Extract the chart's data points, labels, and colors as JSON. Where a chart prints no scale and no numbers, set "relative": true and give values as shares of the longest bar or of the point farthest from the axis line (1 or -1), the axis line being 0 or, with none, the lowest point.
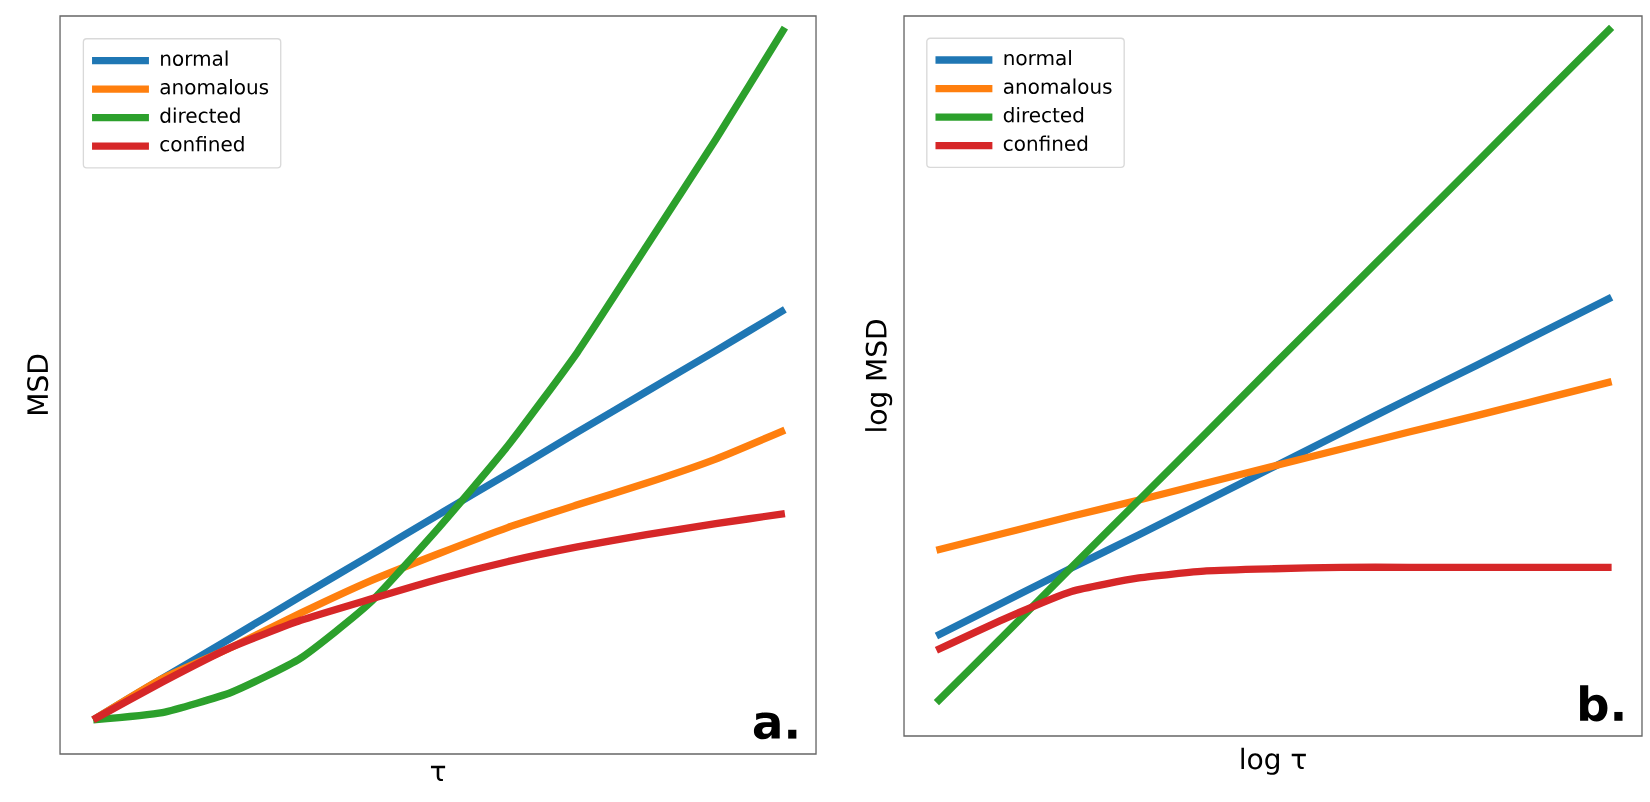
{
  "chart_data": [
    {
      "type": "line",
      "relative": true,
      "xlabel": "τ",
      "ylabel": "MSD",
      "legend": "top left",
      "annotations": [
        "a."
      ],
      "categories": [
        null,
        null,
        null,
        null,
        null,
        null,
        null,
        null,
        null,
        null,
        null
      ],
      "series": [
        {
          "name": "normal",
          "color": "#1f77b4",
          "values": [
            0.047,
            0.104,
            0.16,
            0.217,
            0.273,
            0.33,
            0.386,
            0.443,
            0.499,
            0.555,
            0.612
          ]
        },
        {
          "name": "anomalous",
          "color": "#ff7f0e",
          "values": [
            0.047,
            0.104,
            0.147,
            0.194,
            0.238,
            0.276,
            0.312,
            0.343,
            0.373,
            0.406,
            0.446
          ]
        },
        {
          "name": "directed",
          "color": "#2ca02c",
          "values": [
            0.047,
            0.057,
            0.085,
            0.132,
            0.208,
            0.312,
            0.425,
            0.553,
            0.699,
            0.846,
            1
          ]
        },
        {
          "name": "confined",
          "color": "#d62728",
          "values": [
            0.047,
            0.099,
            0.147,
            0.184,
            0.213,
            0.241,
            0.265,
            0.285,
            0.302,
            0.317,
            0.331
          ]
        }
      ]
    },
    {
      "type": "line",
      "relative": true,
      "xlabel": "log τ",
      "ylabel": "log MSD",
      "legend": "top left",
      "annotations": [
        "b."
      ],
      "categories": [
        null,
        null,
        null,
        null,
        null,
        null,
        null,
        null,
        null,
        null,
        null
      ],
      "series": [
        {
          "name": "normal",
          "color": "#1f77b4",
          "values": [
            0.141,
            0.189,
            0.237,
            0.284,
            0.332,
            0.38,
            0.428,
            0.476,
            0.523,
            0.571,
            0.619
          ]
        },
        {
          "name": "anomalous",
          "color": "#ff7f0e",
          "values": [
            0.262,
            0.286,
            0.31,
            0.333,
            0.357,
            0.381,
            0.405,
            0.429,
            0.452,
            0.476,
            0.5
          ]
        },
        {
          "name": "directed",
          "color": "#2ca02c",
          "values": [
            0.047,
            0.142,
            0.238,
            0.333,
            0.428,
            0.524,
            0.619,
            0.714,
            0.809,
            0.905,
            1
          ]
        },
        {
          "name": "confined",
          "color": "#d62728",
          "values": [
            0.121,
            0.165,
            0.204,
            0.223,
            0.233,
            0.236,
            0.238,
            0.238,
            0.238,
            0.238,
            0.238
          ]
        }
      ]
    }
  ]
}
